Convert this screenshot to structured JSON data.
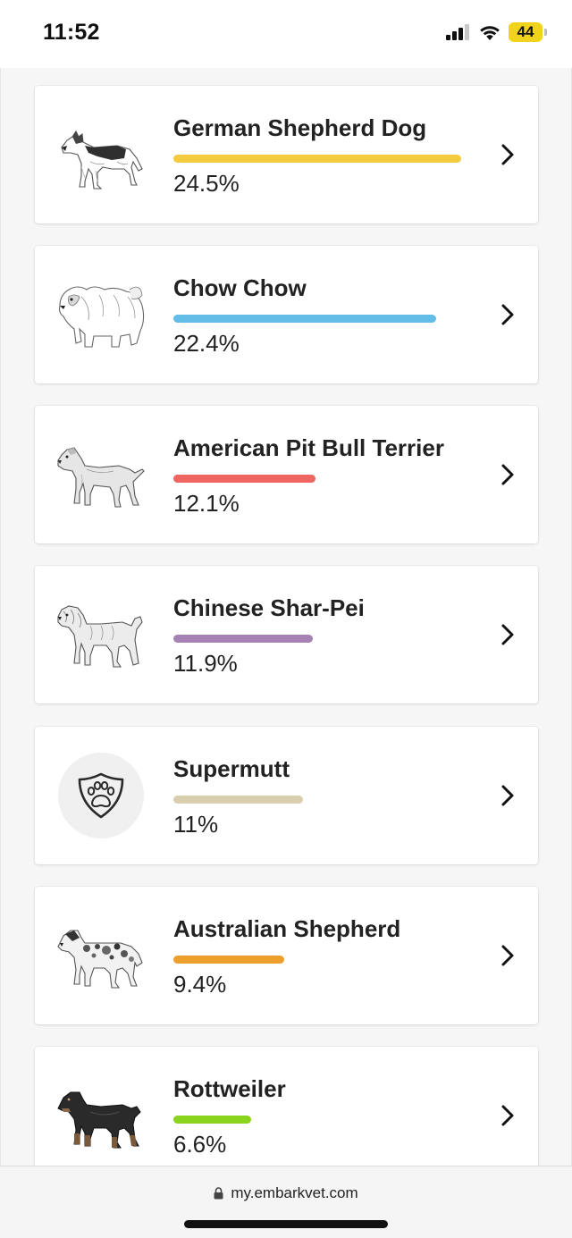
{
  "status_bar": {
    "time": "11:52",
    "battery": "44"
  },
  "breeds": [
    {
      "name": "German Shepherd Dog",
      "percent": "24.5%",
      "value": 24.5,
      "color": "#f4ca3f",
      "image": "german-shepherd-illustration"
    },
    {
      "name": "Chow Chow",
      "percent": "22.4%",
      "value": 22.4,
      "color": "#63bde6",
      "image": "chow-chow-illustration"
    },
    {
      "name": "American Pit Bull Terrier",
      "percent": "12.1%",
      "value": 12.1,
      "color": "#ef6560",
      "image": "pit-bull-illustration"
    },
    {
      "name": "Chinese Shar-Pei",
      "percent": "11.9%",
      "value": 11.9,
      "color": "#a682b4",
      "image": "shar-pei-illustration"
    },
    {
      "name": "Supermutt",
      "percent": "11%",
      "value": 11,
      "color": "#d9cfae",
      "image": "paw-shield-icon"
    },
    {
      "name": "Australian Shepherd",
      "percent": "9.4%",
      "value": 9.4,
      "color": "#ec9f2b",
      "image": "australian-shepherd-illustration"
    },
    {
      "name": "Rottweiler",
      "percent": "6.6%",
      "value": 6.6,
      "color": "#8ad41d",
      "image": "rottweiler-illustration"
    }
  ],
  "browser": {
    "url": "my.embarkvet.com"
  }
}
